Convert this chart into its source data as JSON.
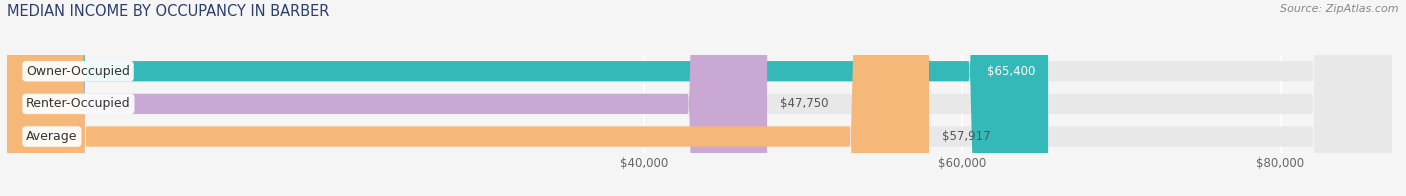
{
  "title": "MEDIAN INCOME BY OCCUPANCY IN BARBER",
  "source": "Source: ZipAtlas.com",
  "categories": [
    "Owner-Occupied",
    "Renter-Occupied",
    "Average"
  ],
  "values": [
    65400,
    47750,
    57917
  ],
  "bar_colors": [
    "#35b8b8",
    "#c9a8d4",
    "#f5b878"
  ],
  "bar_bg_color": "#e8e8e8",
  "label_texts": [
    "$65,400",
    "$47,750",
    "$57,917"
  ],
  "label_inside": [
    true,
    false,
    false
  ],
  "x_ticks": [
    40000,
    60000,
    80000
  ],
  "x_tick_labels": [
    "$40,000",
    "$60,000",
    "$80,000"
  ],
  "xlim_min": 0,
  "xlim_max": 87000,
  "title_fontsize": 10.5,
  "source_fontsize": 8,
  "label_fontsize": 8.5,
  "tick_fontsize": 8.5,
  "category_fontsize": 9,
  "bar_height": 0.62,
  "background_color": "#f5f5f5",
  "grid_color": "#ffffff",
  "title_color": "#2c3e6b",
  "source_color": "#888888",
  "value_label_inside_color": "#ffffff",
  "value_label_outside_color": "#555555"
}
